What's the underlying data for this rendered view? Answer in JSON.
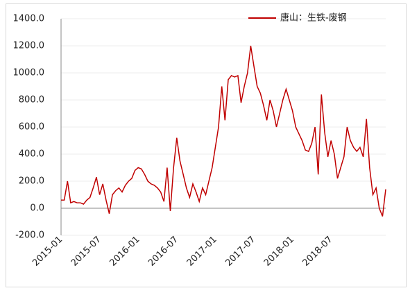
{
  "chart_data": {
    "type": "line",
    "categories": [
      "2015-01",
      null,
      null,
      null,
      null,
      null,
      null,
      null,
      null,
      null,
      null,
      null,
      "2015-07",
      null,
      null,
      null,
      null,
      null,
      null,
      null,
      null,
      null,
      null,
      null,
      "2016-01",
      null,
      null,
      null,
      null,
      null,
      null,
      null,
      null,
      null,
      null,
      null,
      "2016-07",
      null,
      null,
      null,
      null,
      null,
      null,
      null,
      null,
      null,
      null,
      null,
      "2017-01",
      null,
      null,
      null,
      null,
      null,
      null,
      null,
      null,
      null,
      null,
      null,
      "2017-07",
      null,
      null,
      null,
      null,
      null,
      null,
      null,
      null,
      null,
      null,
      null,
      "2018-01",
      null,
      null,
      null,
      null,
      null,
      null,
      null,
      null,
      null,
      null,
      null,
      "2018-07",
      null,
      null,
      null,
      null,
      null,
      null,
      null,
      null,
      null,
      null,
      null,
      null,
      null,
      null,
      null,
      null,
      null
    ],
    "series": [
      {
        "name": "唐山：生铁-废钢",
        "color": "#c00000",
        "values": [
          60,
          60,
          200,
          40,
          50,
          40,
          40,
          30,
          60,
          80,
          150,
          230,
          100,
          180,
          60,
          -40,
          100,
          130,
          150,
          120,
          170,
          200,
          220,
          280,
          300,
          290,
          250,
          200,
          180,
          170,
          150,
          120,
          50,
          300,
          -20,
          300,
          520,
          350,
          250,
          150,
          80,
          180,
          120,
          50,
          150,
          100,
          200,
          300,
          450,
          600,
          900,
          650,
          950,
          980,
          970,
          980,
          780,
          900,
          1000,
          1200,
          1050,
          900,
          850,
          760,
          650,
          800,
          720,
          600,
          700,
          800,
          880,
          800,
          720,
          600,
          550,
          500,
          430,
          420,
          480,
          600,
          250,
          840,
          560,
          380,
          500,
          400,
          220,
          300,
          380,
          600,
          500,
          450,
          420,
          450,
          380,
          660,
          300,
          100,
          150,
          0,
          -60,
          140
        ]
      }
    ],
    "ylim": [
      -200,
      1400
    ],
    "yticks": [
      {
        "value": -200,
        "label": "-200.0"
      },
      {
        "value": 0,
        "label": "0.0"
      },
      {
        "value": 200,
        "label": "200.0"
      },
      {
        "value": 400,
        "label": "400.0"
      },
      {
        "value": 600,
        "label": "600.0"
      },
      {
        "value": 800,
        "label": "800.0"
      },
      {
        "value": 1000,
        "label": "1000.0"
      },
      {
        "value": 1200,
        "label": "1200.0"
      },
      {
        "value": 1400,
        "label": "1400.0"
      }
    ],
    "grid": true,
    "legend": "top-right"
  }
}
